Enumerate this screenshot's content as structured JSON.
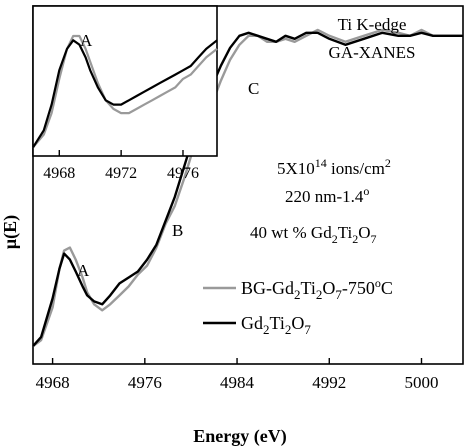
{
  "chart_data": {
    "type": "line",
    "xlabel": "Energy (eV)",
    "ylabel": "μ(E)",
    "xlim": [
      4966.3,
      5003.6
    ],
    "ylim": [
      0,
      1.2
    ],
    "x_ticks": [
      4968,
      4976,
      4984,
      4992,
      5000
    ],
    "x_tick_labels": [
      "4968",
      "4976",
      "4984",
      "4992",
      "5000"
    ],
    "annotations": {
      "title_line1": "Ti K-edge",
      "title_line2": "GA-XANES",
      "fluence_prefix": "5X10",
      "fluence_exp": "14",
      "fluence_suffix": " ions/cm",
      "fluence_sup": "2",
      "depth_angle": "220 nm-1.4",
      "depth_deg": "o",
      "conc_prefix": "40 wt % Gd",
      "conc_sub1": "2",
      "conc_ti": "Ti",
      "conc_sub2": "2",
      "conc_o": "O",
      "conc_sub3": "7",
      "label_A": "A",
      "label_B": "B",
      "label_C": "C"
    },
    "legend": {
      "placement": "lower-right",
      "entries": [
        {
          "gd": "BG-Gd",
          "s1": "2",
          "ti": "Ti",
          "s2": "2",
          "o": "O",
          "s3": "7",
          "suffix": "-750",
          "deg": "o",
          "c": "C",
          "color": "#9a9a9a"
        },
        {
          "gd": "Gd",
          "s1": "2",
          "ti": "Ti",
          "s2": "2",
          "o": "O",
          "s3": "7",
          "suffix": "",
          "deg": "",
          "c": "",
          "color": "#000000"
        }
      ]
    },
    "series": [
      {
        "color": "#9a9a9a",
        "x": [
          4966.3,
          4967,
          4968,
          4968.6,
          4969,
          4969.5,
          4970,
          4970.6,
          4971,
          4971.6,
          4972.3,
          4973,
          4973.8,
          4974.6,
          4975.4,
          4976.2,
          4977,
          4977.8,
          4978.6,
          4979.4,
          4980.2,
          4981,
          4981.8,
          4982.6,
          4983.4,
          4984.2,
          4985,
          4985.8,
          4986.6,
          4987.4,
          4988.2,
          4989,
          4990,
          4991,
          4992,
          4993.4,
          4995,
          4996.6,
          4998,
          4999,
          5000,
          5001,
          5002,
          5003.6
        ],
        "y": [
          0.06,
          0.08,
          0.19,
          0.32,
          0.38,
          0.39,
          0.35,
          0.29,
          0.24,
          0.2,
          0.18,
          0.2,
          0.23,
          0.26,
          0.3,
          0.33,
          0.39,
          0.47,
          0.53,
          0.62,
          0.72,
          0.8,
          0.87,
          0.95,
          1.02,
          1.07,
          1.1,
          1.1,
          1.08,
          1.08,
          1.09,
          1.08,
          1.1,
          1.12,
          1.1,
          1.08,
          1.1,
          1.12,
          1.11,
          1.1,
          1.12,
          1.1,
          1.1,
          1.1
        ]
      },
      {
        "color": "#000000",
        "x": [
          4966.3,
          4967,
          4968,
          4968.6,
          4969,
          4969.5,
          4970,
          4970.6,
          4971,
          4971.6,
          4972.3,
          4973,
          4973.8,
          4974.6,
          4975.4,
          4976.2,
          4977,
          4977.8,
          4978.6,
          4979.4,
          4980.2,
          4981,
          4981.8,
          4982.6,
          4983.4,
          4984.2,
          4985,
          4985.8,
          4986.6,
          4987.4,
          4988.2,
          4989,
          4990,
          4991,
          4992,
          4993.4,
          4995,
          4996.6,
          4998,
          4999,
          5000,
          5001,
          5002,
          5003.6
        ],
        "y": [
          0.06,
          0.09,
          0.22,
          0.32,
          0.37,
          0.35,
          0.31,
          0.26,
          0.23,
          0.21,
          0.2,
          0.23,
          0.27,
          0.29,
          0.31,
          0.35,
          0.4,
          0.48,
          0.56,
          0.66,
          0.76,
          0.85,
          0.93,
          1.0,
          1.06,
          1.1,
          1.11,
          1.1,
          1.09,
          1.08,
          1.1,
          1.09,
          1.11,
          1.11,
          1.09,
          1.07,
          1.09,
          1.11,
          1.1,
          1.1,
          1.11,
          1.1,
          1.1,
          1.1
        ]
      }
    ],
    "inset": {
      "xlim": [
        4966.3,
        4978.2
      ],
      "ylim": [
        0.1,
        0.45
      ],
      "x_ticks": [
        4968,
        4972,
        4976
      ],
      "x_tick_labels": [
        "4968",
        "4972",
        "4976"
      ],
      "label_A": "A",
      "series": [
        {
          "color": "#9a9a9a",
          "x": [
            4966.3,
            4967,
            4967.5,
            4968,
            4968.5,
            4968.9,
            4969.3,
            4969.7,
            4970,
            4970.5,
            4971,
            4971.5,
            4972,
            4972.5,
            4973,
            4973.5,
            4974,
            4974.5,
            4975,
            4975.5,
            4976,
            4976.5,
            4977,
            4977.5,
            4978.2
          ],
          "y": [
            0.12,
            0.15,
            0.2,
            0.28,
            0.35,
            0.38,
            0.38,
            0.35,
            0.32,
            0.27,
            0.23,
            0.21,
            0.2,
            0.2,
            0.21,
            0.22,
            0.23,
            0.24,
            0.25,
            0.26,
            0.28,
            0.29,
            0.31,
            0.33,
            0.35
          ]
        },
        {
          "color": "#000000",
          "x": [
            4966.3,
            4967,
            4967.5,
            4968,
            4968.5,
            4968.9,
            4969.3,
            4969.7,
            4970,
            4970.5,
            4971,
            4971.5,
            4972,
            4972.5,
            4973,
            4973.5,
            4974,
            4974.5,
            4975,
            4975.5,
            4976,
            4976.5,
            4977,
            4977.5,
            4978.2
          ],
          "y": [
            0.12,
            0.16,
            0.22,
            0.3,
            0.35,
            0.37,
            0.36,
            0.33,
            0.3,
            0.26,
            0.23,
            0.22,
            0.22,
            0.23,
            0.24,
            0.25,
            0.26,
            0.27,
            0.28,
            0.29,
            0.3,
            0.31,
            0.33,
            0.35,
            0.37
          ]
        }
      ]
    }
  }
}
